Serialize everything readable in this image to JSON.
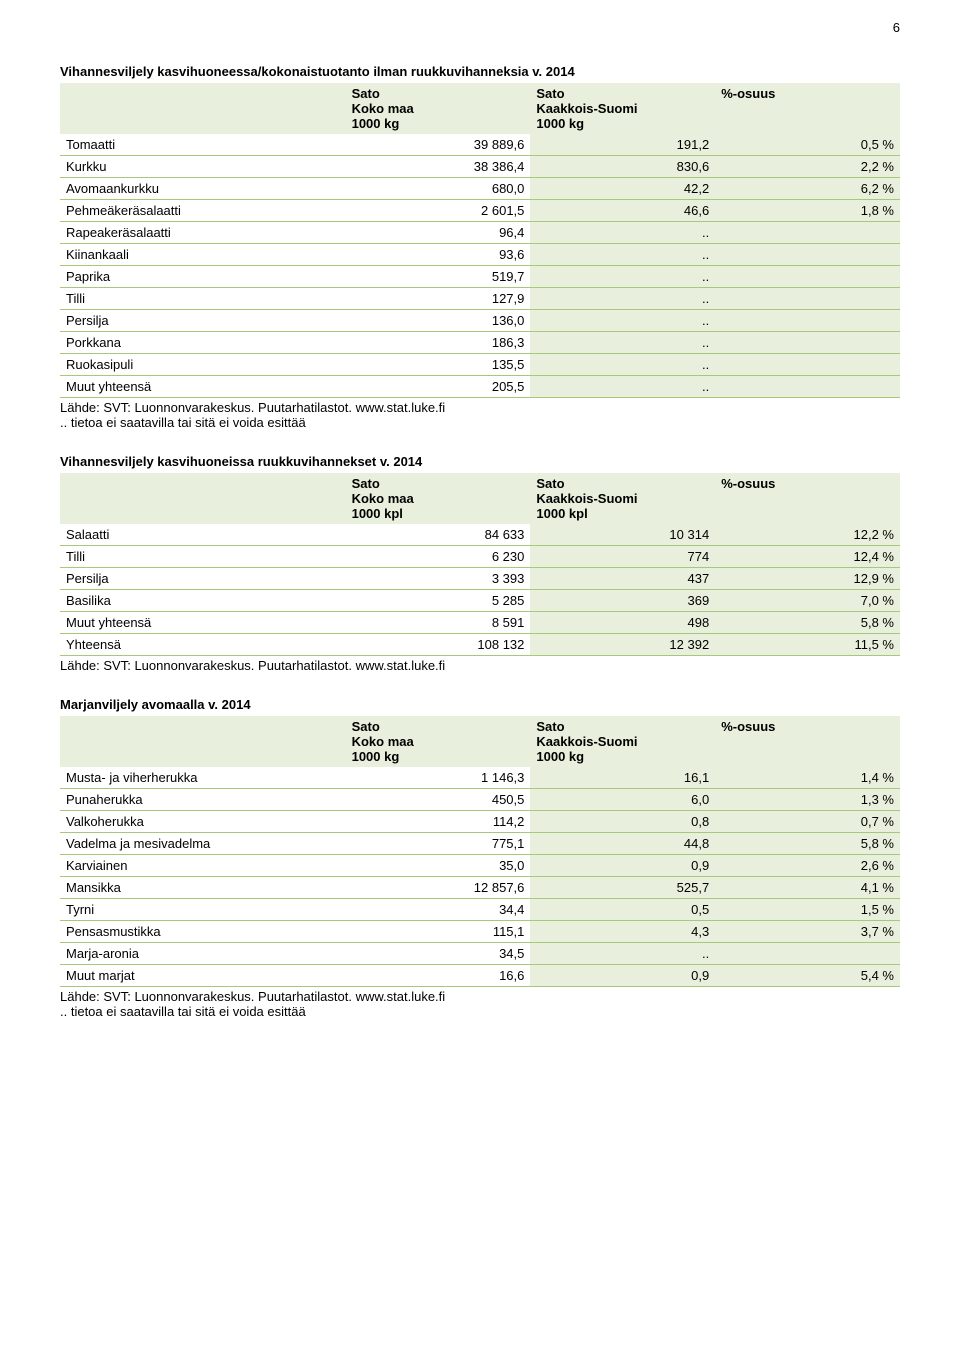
{
  "page_number": "6",
  "colors": {
    "shade": "#e8efdc",
    "rule": "#a8c77a",
    "text": "#000000",
    "bg": "#ffffff"
  },
  "table1": {
    "title": "Vihannesviljely kasvihuoneessa/kokonaistuotanto ilman ruukkuvihanneksia v. 2014",
    "header": {
      "c1_l1": "Sato",
      "c1_l2": "Koko maa",
      "c1_l3": "1000 kg",
      "c2_l1": "Sato",
      "c2_l2": "Kaakkois-Suomi",
      "c2_l3": "1000 kg",
      "c3_l1": "%-osuus"
    },
    "rows": [
      {
        "label": "Tomaatti",
        "v1": "39 889,6",
        "v2": "191,2",
        "v3": "0,5 %"
      },
      {
        "label": "Kurkku",
        "v1": "38 386,4",
        "v2": "830,6",
        "v3": "2,2 %"
      },
      {
        "label": "Avomaankurkku",
        "v1": "680,0",
        "v2": "42,2",
        "v3": "6,2 %"
      },
      {
        "label": "Pehmeäkeräsalaatti",
        "v1": "2 601,5",
        "v2": "46,6",
        "v3": "1,8 %"
      },
      {
        "label": "Rapeakeräsalaatti",
        "v1": "96,4",
        "v2": "..",
        "v3": ""
      },
      {
        "label": "Kiinankaali",
        "v1": "93,6",
        "v2": "..",
        "v3": ""
      },
      {
        "label": "Paprika",
        "v1": "519,7",
        "v2": "..",
        "v3": ""
      },
      {
        "label": "Tilli",
        "v1": "127,9",
        "v2": "..",
        "v3": ""
      },
      {
        "label": "Persilja",
        "v1": "136,0",
        "v2": "..",
        "v3": ""
      },
      {
        "label": "Porkkana",
        "v1": "186,3",
        "v2": "..",
        "v3": ""
      },
      {
        "label": "Ruokasipuli",
        "v1": "135,5",
        "v2": "..",
        "v3": ""
      },
      {
        "label": "Muut yhteensä",
        "v1": "205,5",
        "v2": "..",
        "v3": ""
      }
    ],
    "source": "Lähde: SVT: Luonnonvarakeskus. Puutarhatilastot. www.stat.luke.fi",
    "note": ".. tietoa ei saatavilla tai sitä ei voida esittää"
  },
  "table2": {
    "title": "Vihannesviljely kasvihuoneissa ruukkuvihannekset v. 2014",
    "header": {
      "c1_l1": "Sato",
      "c1_l2": "Koko maa",
      "c1_l3": "1000 kpl",
      "c2_l1": "Sato",
      "c2_l2": "Kaakkois-Suomi",
      "c2_l3": "1000 kpl",
      "c3_l1": "%-osuus"
    },
    "rows": [
      {
        "label": "Salaatti",
        "v1": "84 633",
        "v2": "10 314",
        "v3": "12,2 %"
      },
      {
        "label": "Tilli",
        "v1": "6 230",
        "v2": "774",
        "v3": "12,4 %"
      },
      {
        "label": "Persilja",
        "v1": "3 393",
        "v2": "437",
        "v3": "12,9 %"
      },
      {
        "label": "Basilika",
        "v1": "5 285",
        "v2": "369",
        "v3": "7,0 %"
      },
      {
        "label": "Muut yhteensä",
        "v1": "8 591",
        "v2": "498",
        "v3": "5,8 %"
      },
      {
        "label": "Yhteensä",
        "v1": "108 132",
        "v2": "12 392",
        "v3": "11,5 %"
      }
    ],
    "source": "Lähde: SVT: Luonnonvarakeskus. Puutarhatilastot. www.stat.luke.fi"
  },
  "table3": {
    "title": "Marjanviljely avomaalla v. 2014",
    "header": {
      "c1_l1": "Sato",
      "c1_l2": "Koko maa",
      "c1_l3": "1000 kg",
      "c2_l1": "Sato",
      "c2_l2": "Kaakkois-Suomi",
      "c2_l3": "1000 kg",
      "c3_l1": "%-osuus"
    },
    "rows": [
      {
        "label": "Musta- ja viherherukka",
        "v1": "1 146,3",
        "v2": "16,1",
        "v3": "1,4 %"
      },
      {
        "label": "Punaherukka",
        "v1": "450,5",
        "v2": "6,0",
        "v3": "1,3 %"
      },
      {
        "label": "Valkoherukka",
        "v1": "114,2",
        "v2": "0,8",
        "v3": "0,7 %"
      },
      {
        "label": "Vadelma ja mesivadelma",
        "v1": "775,1",
        "v2": "44,8",
        "v3": "5,8 %"
      },
      {
        "label": "Karviainen",
        "v1": "35,0",
        "v2": "0,9",
        "v3": "2,6 %"
      },
      {
        "label": "Mansikka",
        "v1": "12 857,6",
        "v2": "525,7",
        "v3": "4,1 %"
      },
      {
        "label": "Tyrni",
        "v1": "34,4",
        "v2": "0,5",
        "v3": "1,5 %"
      },
      {
        "label": "Pensasmustikka",
        "v1": "115,1",
        "v2": "4,3",
        "v3": "3,7 %"
      },
      {
        "label": "Marja-aronia",
        "v1": "34,5",
        "v2": "..",
        "v3": ""
      },
      {
        "label": "Muut marjat",
        "v1": "16,6",
        "v2": "0,9",
        "v3": "5,4 %"
      }
    ],
    "source": "Lähde: SVT: Luonnonvarakeskus. Puutarhatilastot. www.stat.luke.fi",
    "note": ".. tietoa ei saatavilla tai sitä ei voida esittää"
  }
}
